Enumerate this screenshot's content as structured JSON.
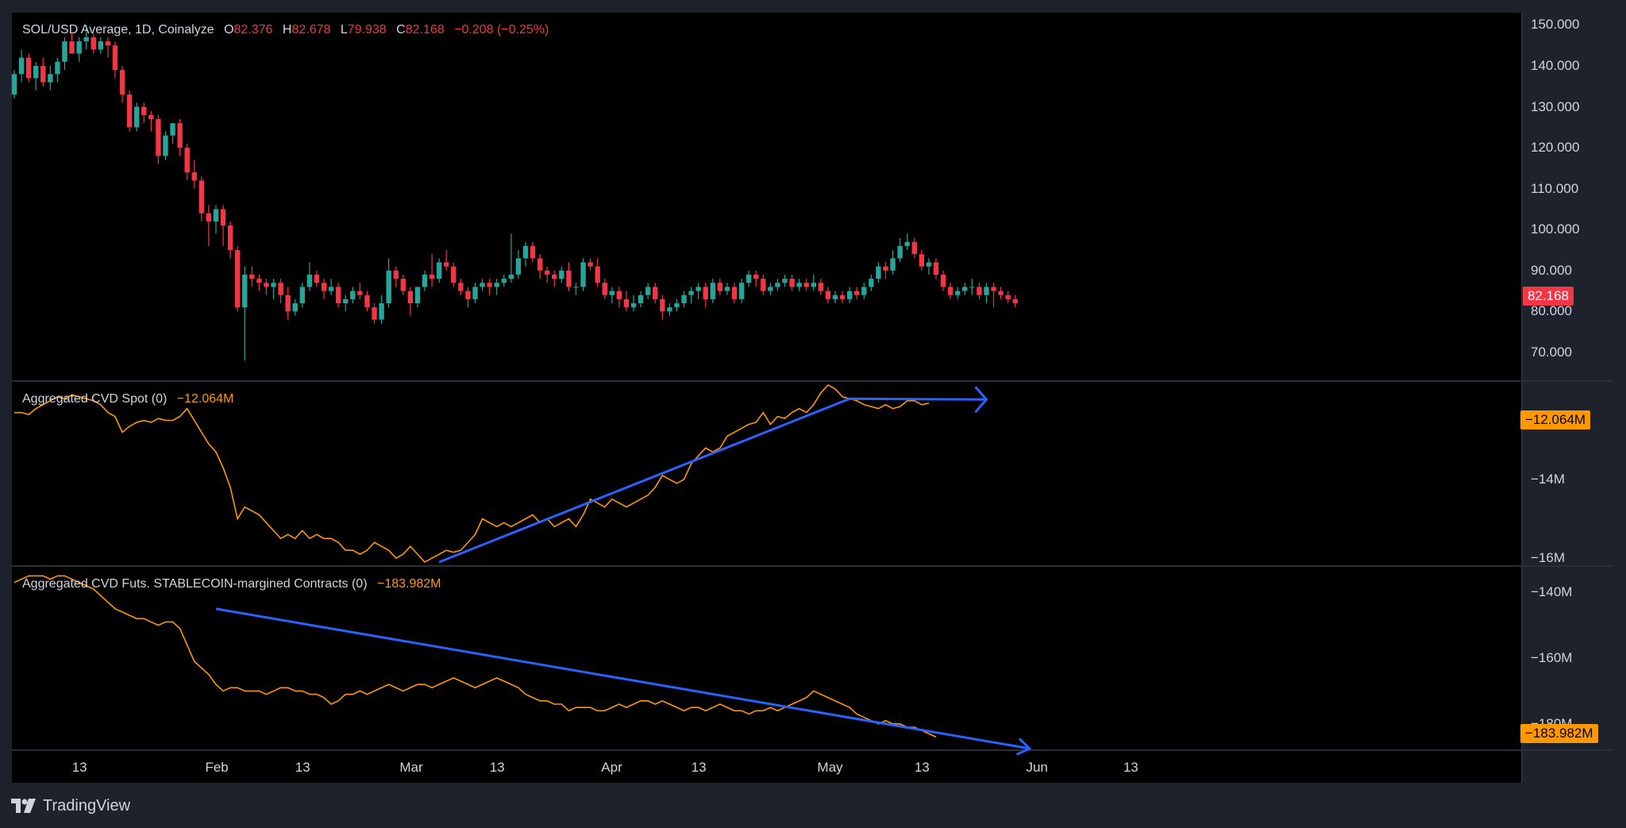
{
  "colors": {
    "bg": "#000000",
    "frame": "#1e222d",
    "up": "#26a69a",
    "down": "#f23645",
    "cvd": "#ff9800",
    "trend": "#2962ff",
    "text": "#d1d4dc",
    "grid": "#2a2e39"
  },
  "price_legend": {
    "title": "SOL/USD Average, 1D, Coinalyze",
    "o_label": "O",
    "o": "82.376",
    "h_label": "H",
    "h": "82.678",
    "l_label": "L",
    "l": "79.938",
    "c_label": "C",
    "c": "82.168",
    "change": "−0.208 (−0.25%)"
  },
  "spot_legend": {
    "title": "Aggregated CVD Spot (0)",
    "value": "−12.064M"
  },
  "futs_legend": {
    "title": "Aggregated CVD Futs. STABLECOIN-margined Contracts (0)",
    "value": "−183.982M"
  },
  "price_axis": [
    "150.000",
    "140.000",
    "130.000",
    "120.000",
    "110.000",
    "100.000",
    "90.000",
    "80.000",
    "70.000"
  ],
  "spot_axis": [
    "−14M",
    "−16M"
  ],
  "futs_axis": [
    "−140M",
    "−160M",
    "−180M"
  ],
  "tags": {
    "price": "82.168",
    "spot": "−12.064M",
    "futs": "−183.982M"
  },
  "time_axis": [
    "13",
    "Feb",
    "13",
    "Mar",
    "13",
    "Apr",
    "13",
    "May",
    "13",
    "Jun",
    "13"
  ],
  "brand": "TradingView",
  "chart_data": [
    {
      "type": "candlestick",
      "title": "SOL/USD Average, 1D, Coinalyze",
      "x_range": [
        "2026-01-04",
        "2026-05-28"
      ],
      "ylim": [
        63,
        153
      ],
      "legend": "top-left",
      "ohlc": [
        [
          133,
          139,
          132,
          138
        ],
        [
          138,
          144,
          136,
          142
        ],
        [
          142,
          143,
          136,
          137
        ],
        [
          137,
          141,
          134,
          140
        ],
        [
          140,
          142,
          135,
          136
        ],
        [
          136,
          140,
          134,
          138
        ],
        [
          138,
          142,
          136,
          141
        ],
        [
          141,
          147,
          139,
          146
        ],
        [
          146,
          148,
          143,
          143
        ],
        [
          143,
          147,
          141,
          146
        ],
        [
          146,
          150,
          144,
          147
        ],
        [
          147,
          148,
          143,
          144
        ],
        [
          144,
          147,
          143,
          146
        ],
        [
          146,
          147,
          142,
          145
        ],
        [
          145,
          146,
          137,
          139
        ],
        [
          139,
          140,
          131,
          133
        ],
        [
          133,
          134,
          124,
          125
        ],
        [
          125,
          131,
          124,
          130
        ],
        [
          130,
          131,
          126,
          128
        ],
        [
          128,
          129,
          124,
          127
        ],
        [
          127,
          128,
          116,
          118
        ],
        [
          118,
          124,
          117,
          123
        ],
        [
          123,
          126,
          121,
          126
        ],
        [
          126,
          127,
          118,
          120
        ],
        [
          120,
          121,
          112,
          114
        ],
        [
          114,
          117,
          110,
          112
        ],
        [
          112,
          113,
          102,
          104
        ],
        [
          104,
          106,
          96,
          102
        ],
        [
          102,
          106,
          99,
          105
        ],
        [
          105,
          106,
          96,
          101
        ],
        [
          101,
          102,
          93,
          95
        ],
        [
          95,
          96,
          80,
          81
        ],
        [
          81,
          91,
          68,
          89
        ],
        [
          89,
          91,
          86,
          88
        ],
        [
          88,
          89,
          85,
          87
        ],
        [
          87,
          88,
          84,
          86
        ],
        [
          86,
          88,
          83,
          87
        ],
        [
          87,
          88,
          82,
          84
        ],
        [
          84,
          86,
          78,
          80
        ],
        [
          80,
          83,
          79,
          82
        ],
        [
          82,
          87,
          81,
          86
        ],
        [
          86,
          92,
          85,
          89
        ],
        [
          89,
          90,
          86,
          87
        ],
        [
          87,
          88,
          83,
          85
        ],
        [
          85,
          88,
          84,
          86
        ],
        [
          86,
          87,
          81,
          82
        ],
        [
          82,
          84,
          80,
          83
        ],
        [
          83,
          86,
          82,
          85
        ],
        [
          85,
          87,
          83,
          84
        ],
        [
          84,
          85,
          80,
          81
        ],
        [
          81,
          82,
          77,
          78
        ],
        [
          78,
          84,
          77,
          82
        ],
        [
          82,
          93,
          81,
          90
        ],
        [
          90,
          91,
          86,
          88
        ],
        [
          88,
          89,
          84,
          85
        ],
        [
          85,
          86,
          79,
          82
        ],
        [
          82,
          86,
          81,
          86
        ],
        [
          86,
          90,
          85,
          89
        ],
        [
          89,
          94,
          86,
          88
        ],
        [
          88,
          93,
          87,
          92
        ],
        [
          92,
          95,
          90,
          91
        ],
        [
          91,
          92,
          86,
          87
        ],
        [
          87,
          88,
          84,
          85
        ],
        [
          85,
          86,
          81,
          83
        ],
        [
          83,
          87,
          82,
          86
        ],
        [
          86,
          88,
          85,
          87
        ],
        [
          87,
          88,
          84,
          86
        ],
        [
          86,
          88,
          84,
          87
        ],
        [
          87,
          89,
          86,
          88
        ],
        [
          88,
          99,
          87,
          89
        ],
        [
          89,
          95,
          88,
          93
        ],
        [
          93,
          97,
          91,
          96
        ],
        [
          96,
          97,
          92,
          93
        ],
        [
          93,
          94,
          88,
          90
        ],
        [
          90,
          91,
          87,
          89
        ],
        [
          89,
          90,
          86,
          88
        ],
        [
          88,
          91,
          87,
          90
        ],
        [
          90,
          92,
          85,
          86
        ],
        [
          86,
          87,
          84,
          86
        ],
        [
          86,
          93,
          85,
          92
        ],
        [
          92,
          93,
          90,
          91
        ],
        [
          91,
          93,
          86,
          87
        ],
        [
          87,
          88,
          83,
          84
        ],
        [
          84,
          86,
          82,
          85
        ],
        [
          85,
          86,
          81,
          83
        ],
        [
          83,
          85,
          80,
          81
        ],
        [
          81,
          84,
          80,
          82
        ],
        [
          82,
          85,
          81,
          84
        ],
        [
          84,
          87,
          83,
          86
        ],
        [
          86,
          87,
          82,
          83
        ],
        [
          83,
          84,
          78,
          80
        ],
        [
          80,
          82,
          79,
          81
        ],
        [
          81,
          83,
          80,
          82
        ],
        [
          82,
          85,
          81,
          84
        ],
        [
          84,
          86,
          82,
          85
        ],
        [
          85,
          87,
          83,
          86
        ],
        [
          86,
          87,
          81,
          83
        ],
        [
          83,
          88,
          82,
          87
        ],
        [
          87,
          88,
          84,
          85
        ],
        [
          85,
          87,
          84,
          86
        ],
        [
          86,
          87,
          82,
          83
        ],
        [
          83,
          88,
          82,
          87
        ],
        [
          87,
          90,
          86,
          89
        ],
        [
          89,
          90,
          86,
          88
        ],
        [
          88,
          89,
          84,
          85
        ],
        [
          85,
          87,
          84,
          86
        ],
        [
          86,
          88,
          85,
          87
        ],
        [
          87,
          89,
          86,
          88
        ],
        [
          88,
          89,
          85,
          86
        ],
        [
          86,
          88,
          85,
          87
        ],
        [
          87,
          88,
          85,
          86
        ],
        [
          86,
          89,
          85,
          87
        ],
        [
          87,
          88,
          84,
          85
        ],
        [
          85,
          86,
          82,
          83
        ],
        [
          83,
          85,
          82,
          84
        ],
        [
          84,
          85,
          82,
          83
        ],
        [
          83,
          86,
          82,
          85
        ],
        [
          85,
          86,
          83,
          84
        ],
        [
          84,
          87,
          83,
          86
        ],
        [
          86,
          89,
          85,
          88
        ],
        [
          88,
          92,
          87,
          91
        ],
        [
          91,
          92,
          88,
          90
        ],
        [
          90,
          95,
          89,
          93
        ],
        [
          93,
          98,
          92,
          96
        ],
        [
          96,
          99,
          95,
          97
        ],
        [
          97,
          98,
          93,
          94
        ],
        [
          94,
          95,
          90,
          91
        ],
        [
          91,
          93,
          89,
          92
        ],
        [
          92,
          93,
          88,
          89
        ],
        [
          89,
          90,
          85,
          86
        ],
        [
          86,
          87,
          83,
          84
        ],
        [
          84,
          86,
          83,
          85
        ],
        [
          85,
          87,
          84,
          86
        ],
        [
          86,
          88,
          84,
          86
        ],
        [
          86,
          87,
          83,
          84
        ],
        [
          84,
          87,
          82,
          86
        ],
        [
          86,
          87,
          81,
          85
        ],
        [
          85,
          86,
          83,
          84
        ],
        [
          84,
          85,
          82,
          83
        ],
        [
          83,
          84,
          81,
          82
        ]
      ]
    },
    {
      "type": "line",
      "title": "Aggregated CVD Spot (0)",
      "x_range": [
        "2026-01-04",
        "2026-05-28"
      ],
      "ylim": [
        -16.2,
        -11.5
      ],
      "last_value": -12.064,
      "values": [
        -12.3,
        -12.3,
        -12.35,
        -12.2,
        -12.1,
        -12.0,
        -11.9,
        -11.95,
        -11.85,
        -11.9,
        -11.95,
        -12.0,
        -12.1,
        -12.3,
        -12.4,
        -12.8,
        -12.65,
        -12.55,
        -12.5,
        -12.55,
        -12.45,
        -12.5,
        -12.5,
        -12.4,
        -12.2,
        -12.5,
        -12.8,
        -13.1,
        -13.3,
        -13.7,
        -14.2,
        -15.0,
        -14.7,
        -14.8,
        -14.9,
        -15.1,
        -15.3,
        -15.5,
        -15.4,
        -15.5,
        -15.3,
        -15.5,
        -15.4,
        -15.5,
        -15.5,
        -15.6,
        -15.8,
        -15.8,
        -15.9,
        -15.8,
        -15.6,
        -15.7,
        -15.8,
        -16.0,
        -15.9,
        -15.7,
        -15.9,
        -16.1,
        -16.0,
        -15.9,
        -15.8,
        -15.85,
        -15.8,
        -15.6,
        -15.4,
        -15.0,
        -15.1,
        -15.2,
        -15.1,
        -15.2,
        -15.1,
        -15.0,
        -14.9,
        -15.1,
        -15.0,
        -15.2,
        -15.1,
        -15.0,
        -15.2,
        -14.9,
        -14.5,
        -14.6,
        -14.7,
        -14.5,
        -14.6,
        -14.7,
        -14.6,
        -14.5,
        -14.4,
        -14.2,
        -13.9,
        -14.0,
        -14.1,
        -14.0,
        -13.6,
        -13.4,
        -13.2,
        -13.3,
        -13.2,
        -12.9,
        -12.8,
        -12.7,
        -12.6,
        -12.55,
        -12.3,
        -12.6,
        -12.4,
        -12.45,
        -12.3,
        -12.2,
        -12.3,
        -12.1,
        -11.8,
        -11.6,
        -11.7,
        -11.9,
        -11.95,
        -12.0,
        -12.1,
        -12.15,
        -12.2,
        -12.1,
        -12.2,
        -12.15,
        -12.0,
        -12.0,
        -12.1,
        -12.064
      ]
    },
    {
      "type": "line",
      "title": "Aggregated CVD Futs. STABLECOIN-margined Contracts (0)",
      "x_range": [
        "2026-01-04",
        "2026-05-28"
      ],
      "ylim": [
        -188,
        -132
      ],
      "last_value": -183.982,
      "values": [
        -137,
        -136,
        -135,
        -135,
        -135,
        -136,
        -135,
        -135,
        -136,
        -137,
        -138,
        -139,
        -141,
        -143,
        -145,
        -146,
        -147,
        -148,
        -148,
        -149,
        -150,
        -149,
        -149,
        -151,
        -156,
        -161,
        -163,
        -165,
        -168,
        -170,
        -169,
        -169,
        -170,
        -170,
        -170,
        -171,
        -170,
        -169,
        -169,
        -170,
        -170,
        -171,
        -171,
        -172,
        -174,
        -173,
        -171,
        -171,
        -170,
        -171,
        -170,
        -169,
        -168,
        -169,
        -170,
        -169,
        -168,
        -168,
        -169,
        -168,
        -167,
        -166,
        -167,
        -168,
        -169,
        -168,
        -167,
        -166,
        -167,
        -168,
        -169,
        -171,
        -172,
        -173,
        -173,
        -174,
        -174,
        -176,
        -175,
        -175,
        -175,
        -176,
        -176,
        -175,
        -174,
        -175,
        -174,
        -173,
        -173,
        -174,
        -173,
        -174,
        -175,
        -176,
        -175,
        -175,
        -176,
        -175,
        -174,
        -175,
        -176,
        -176,
        -177,
        -176,
        -176,
        -175,
        -176,
        -175,
        -174,
        -173,
        -172,
        -170,
        -171,
        -172,
        -173,
        -174,
        -175,
        -177,
        -178,
        -179,
        -180,
        -179,
        -180,
        -180,
        -181,
        -181,
        -182,
        -183,
        -183.982
      ]
    }
  ]
}
